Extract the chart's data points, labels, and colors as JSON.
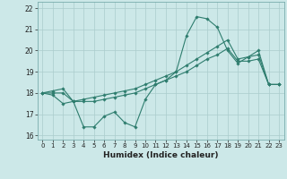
{
  "xlabel": "Humidex (Indice chaleur)",
  "ylabel": "",
  "bg_color": "#cce8e8",
  "grid_color": "#aacccc",
  "line_color": "#2e7d6e",
  "xlim": [
    -0.5,
    23.5
  ],
  "ylim": [
    15.8,
    22.3
  ],
  "yticks": [
    16,
    17,
    18,
    19,
    20,
    21,
    22
  ],
  "xticks": [
    0,
    1,
    2,
    3,
    4,
    5,
    6,
    7,
    8,
    9,
    10,
    11,
    12,
    13,
    14,
    15,
    16,
    17,
    18,
    19,
    20,
    21,
    22,
    23
  ],
  "series": [
    [
      18.0,
      17.9,
      17.5,
      17.6,
      16.4,
      16.4,
      16.9,
      17.1,
      16.6,
      16.4,
      17.7,
      18.4,
      18.6,
      19.0,
      20.7,
      21.6,
      21.5,
      21.1,
      20.0,
      19.4,
      19.7,
      20.0,
      18.4,
      18.4
    ],
    [
      18.0,
      18.0,
      18.0,
      17.6,
      17.6,
      17.6,
      17.7,
      17.8,
      17.9,
      18.0,
      18.2,
      18.4,
      18.6,
      18.8,
      19.0,
      19.3,
      19.6,
      19.8,
      20.1,
      19.5,
      19.5,
      19.6,
      18.4,
      18.4
    ],
    [
      18.0,
      18.1,
      18.2,
      17.6,
      17.7,
      17.8,
      17.9,
      18.0,
      18.1,
      18.2,
      18.4,
      18.6,
      18.8,
      19.0,
      19.3,
      19.6,
      19.9,
      20.2,
      20.5,
      19.6,
      19.7,
      19.8,
      18.4,
      18.4
    ]
  ]
}
